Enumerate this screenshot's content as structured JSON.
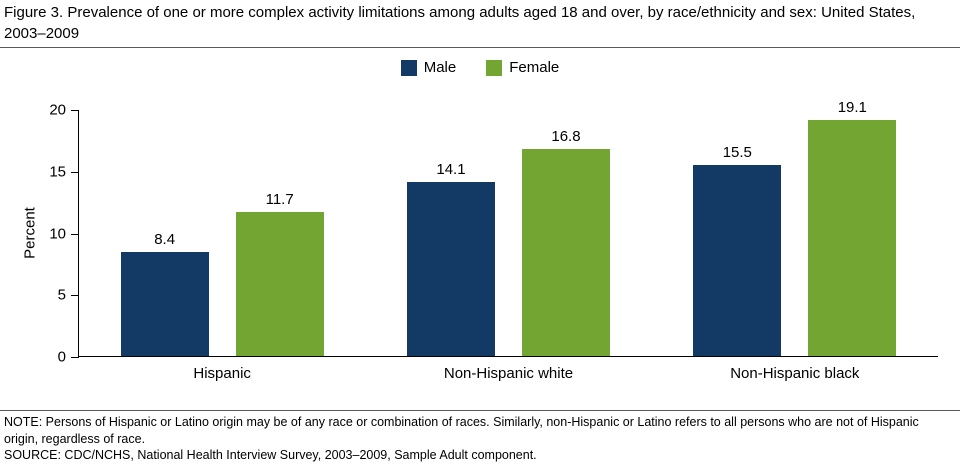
{
  "figure": {
    "title": "Figure 3. Prevalence of one or more complex activity limitations among adults aged 18 and over, by race/ethnicity and sex: United States, 2003–2009",
    "note": "NOTE: Persons of Hispanic or Latino origin may be of any race or combination of races. Similarly, non-Hispanic or Latino refers to all persons who are not of Hispanic origin, regardless of race.",
    "source": "SOURCE: CDC/NCHS, National Health Interview Survey, 2003–2009, Sample Adult component."
  },
  "chart_data": {
    "type": "bar",
    "title": "Figure 3. Prevalence of one or more complex activity limitations among adults aged 18 and over, by race/ethnicity and sex: United States, 2003–2009",
    "categories": [
      "Hispanic",
      "Non-Hispanic white",
      "Non-Hispanic black"
    ],
    "series": [
      {
        "name": "Male",
        "color": "#123A64",
        "values": [
          8.4,
          14.1,
          15.5
        ]
      },
      {
        "name": "Female",
        "color": "#73A533",
        "values": [
          11.7,
          16.8,
          19.1
        ]
      }
    ],
    "xlabel": "",
    "ylabel": "Percent",
    "ylim": [
      0,
      20
    ],
    "yticks": [
      0,
      5,
      10,
      15,
      20
    ],
    "grid": false,
    "legend_position": "top-center",
    "value_labels": "one-decimal"
  }
}
